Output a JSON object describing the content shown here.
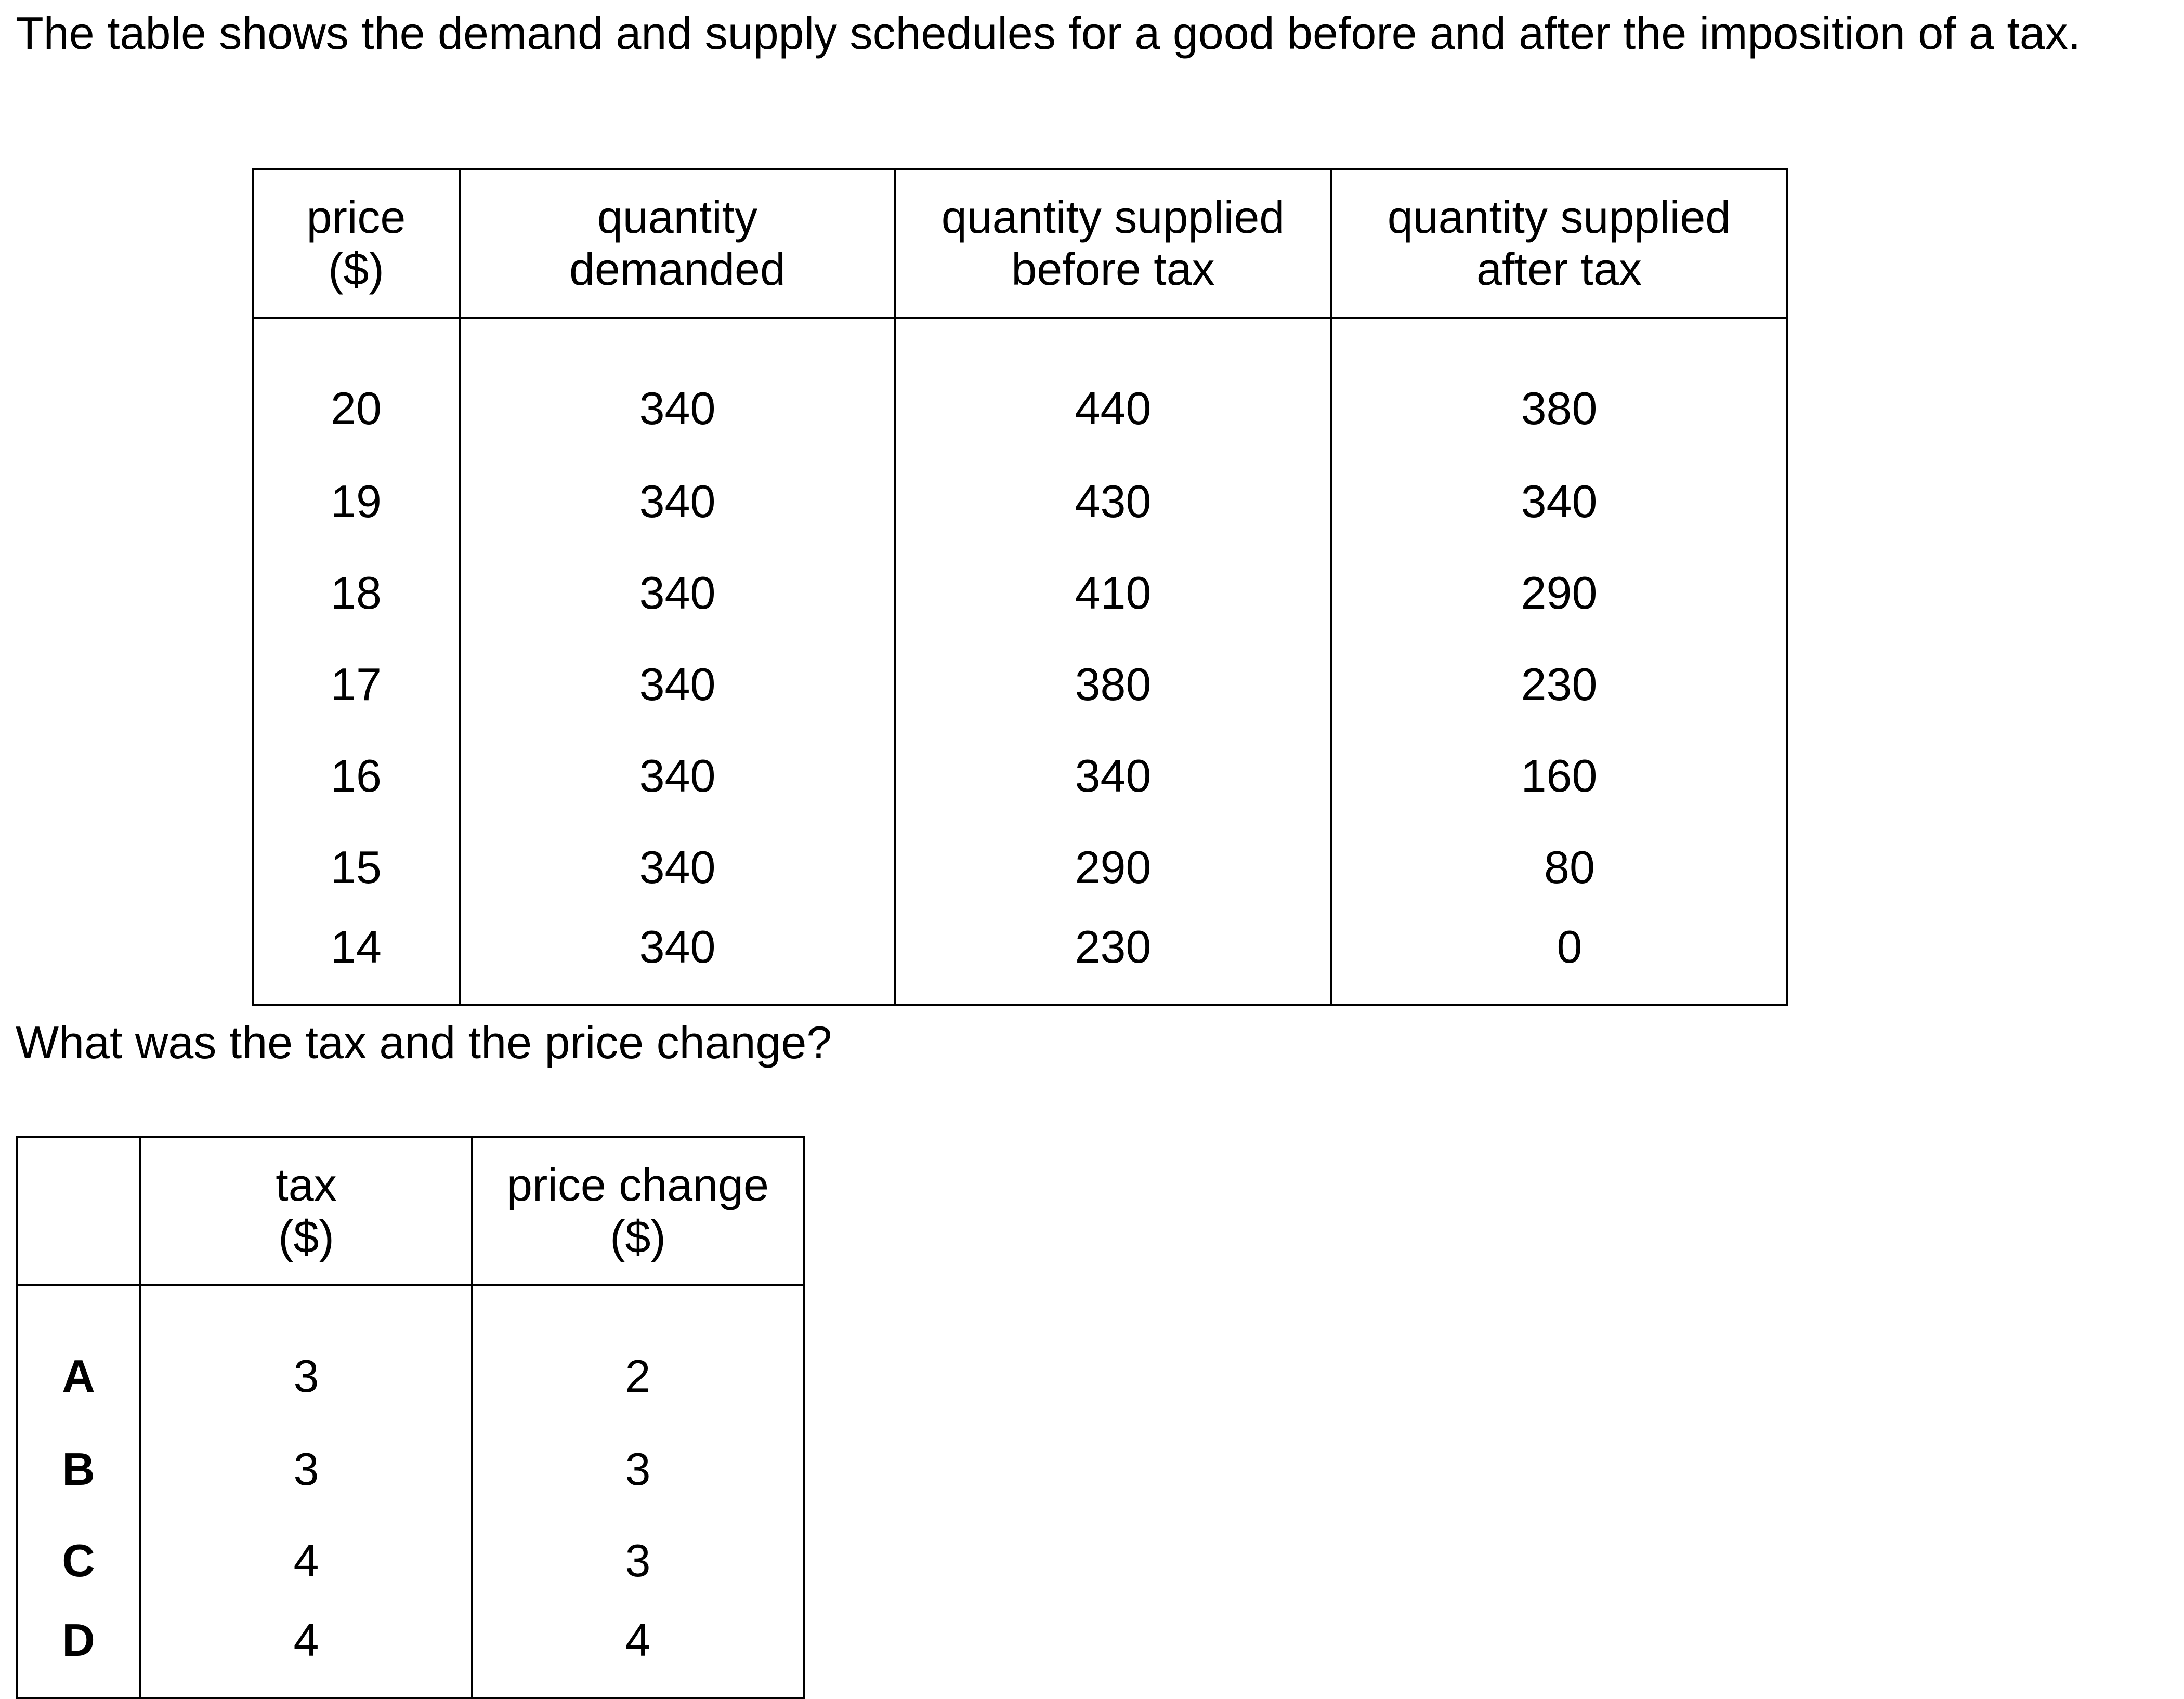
{
  "intro": "The table shows the demand and supply schedules for a good before and after the imposition of a tax.",
  "schedule": {
    "headers": {
      "price": "price",
      "price_unit": "($)",
      "qd_1": "quantity",
      "qd_2": "demanded",
      "qsb_1": "quantity supplied",
      "qsb_2": "before tax",
      "qsa_1": "quantity supplied",
      "qsa_2": "after tax"
    },
    "rows": [
      {
        "price": "20",
        "qd": "340",
        "qsb": "440",
        "qsa": "380"
      },
      {
        "price": "19",
        "qd": "340",
        "qsb": "430",
        "qsa": "340"
      },
      {
        "price": "18",
        "qd": "340",
        "qsb": "410",
        "qsa": "290"
      },
      {
        "price": "17",
        "qd": "340",
        "qsb": "380",
        "qsa": "230"
      },
      {
        "price": "16",
        "qd": "340",
        "qsb": "340",
        "qsa": "160"
      },
      {
        "price": "15",
        "qd": "340",
        "qsb": "290",
        "qsa": "80"
      },
      {
        "price": "14",
        "qd": "340",
        "qsb": "230",
        "qsa": "0"
      }
    ]
  },
  "question": "What was the tax and the price change?",
  "options": {
    "headers": {
      "tax": "tax",
      "tax_unit": "($)",
      "price_change": "price change",
      "price_change_unit": "($)"
    },
    "rows": [
      {
        "letter": "A",
        "tax": "3",
        "price_change": "2"
      },
      {
        "letter": "B",
        "tax": "3",
        "price_change": "3"
      },
      {
        "letter": "C",
        "tax": "4",
        "price_change": "3"
      },
      {
        "letter": "D",
        "tax": "4",
        "price_change": "4"
      }
    ]
  }
}
